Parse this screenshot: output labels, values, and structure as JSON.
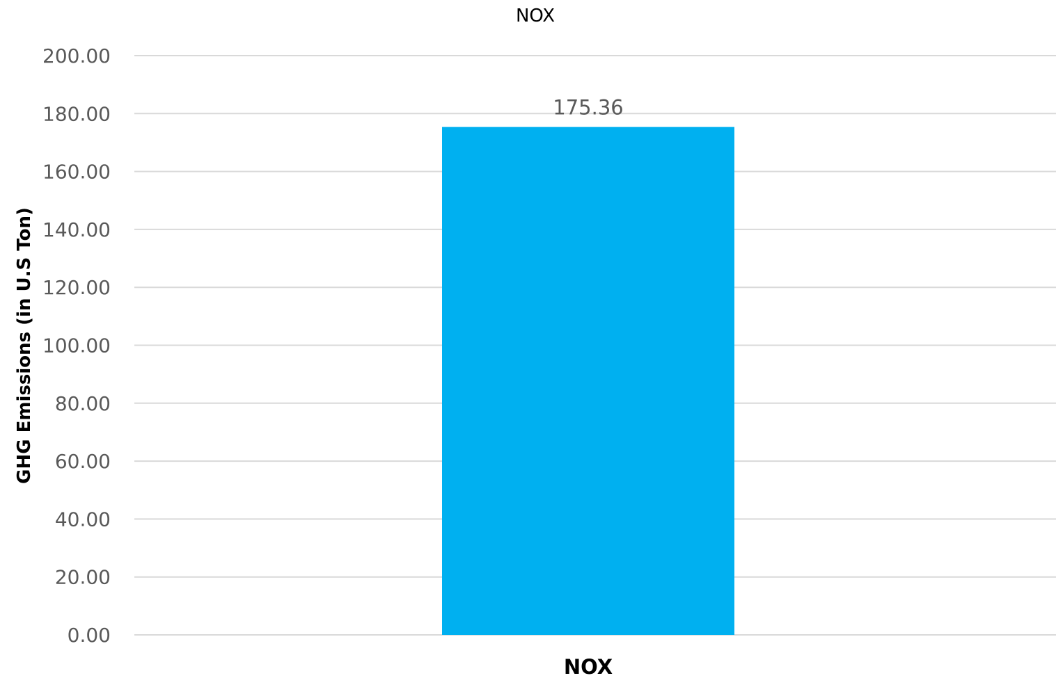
{
  "chart_data": {
    "type": "bar",
    "title": "NOX",
    "ylabel": "GHG Emissions (in U.S Ton)",
    "xlabel": "",
    "categories": [
      "NOX"
    ],
    "series": [
      {
        "values": [
          175.36
        ],
        "data_labels": [
          "175.36"
        ],
        "color": "#00B0F0"
      }
    ],
    "ylim": [
      0,
      200
    ],
    "yticks": [
      0,
      20,
      40,
      60,
      80,
      100,
      120,
      140,
      160,
      180,
      200
    ],
    "ytick_labels": [
      "0.00",
      "20.00",
      "40.00",
      "60.00",
      "80.00",
      "100.00",
      "120.00",
      "140.00",
      "160.00",
      "180.00",
      "200.00"
    ],
    "grid": true,
    "legend": "none"
  },
  "colors": {
    "bar": "#00B0F0",
    "grid": "#d9d9d9",
    "tick_text": "#595959",
    "title_text": "#000000"
  }
}
